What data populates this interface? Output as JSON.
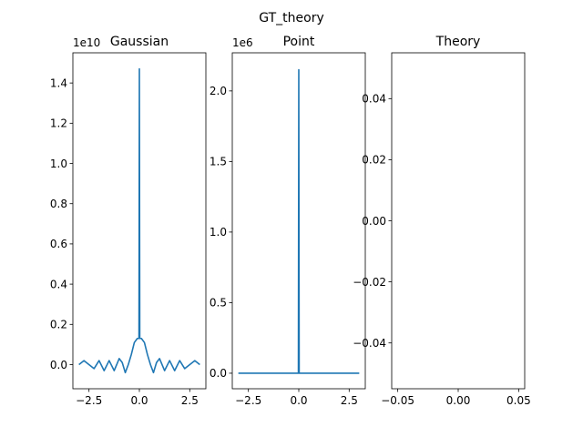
{
  "figure": {
    "suptitle": "GT_theory"
  },
  "chart_data": [
    {
      "type": "line",
      "title": "Gaussian",
      "xlabel": "",
      "ylabel": "",
      "offset_text": "1e10",
      "xlim": [
        -3.3,
        3.3
      ],
      "ylim": [
        -0.12,
        1.55
      ],
      "xticks": [
        -2.5,
        0.0,
        2.5
      ],
      "xtick_labels": [
        "−2.5",
        "0.0",
        "2.5"
      ],
      "yticks": [
        0.0,
        0.2,
        0.4,
        0.6,
        0.8,
        1.0,
        1.2,
        1.4
      ],
      "ytick_labels": [
        "0.0",
        "0.2",
        "0.4",
        "0.6",
        "0.8",
        "1.0",
        "1.2",
        "1.4"
      ],
      "grid": false,
      "color": "#1f77b4",
      "series": [
        {
          "x": [
            -3.0,
            -2.75,
            -2.5,
            -2.25,
            -2.0,
            -1.75,
            -1.5,
            -1.25,
            -1.0,
            -0.85,
            -0.7,
            -0.55,
            -0.4,
            -0.25,
            -0.1,
            -0.02,
            0.0,
            0.02,
            0.1,
            0.25,
            0.4,
            0.55,
            0.7,
            0.85,
            1.0,
            1.25,
            1.5,
            1.75,
            2.0,
            2.25,
            2.5,
            2.75,
            3.0
          ],
          "y": [
            0.0,
            0.02,
            0.0,
            -0.02,
            0.02,
            -0.03,
            0.02,
            -0.03,
            0.03,
            0.01,
            -0.04,
            0.0,
            0.05,
            0.11,
            0.13,
            0.13,
            1.47,
            0.13,
            0.13,
            0.11,
            0.05,
            0.0,
            -0.04,
            0.01,
            0.03,
            -0.03,
            0.02,
            -0.03,
            0.02,
            -0.02,
            0.0,
            0.02,
            0.0
          ]
        }
      ]
    },
    {
      "type": "line",
      "title": "Point",
      "xlabel": "",
      "ylabel": "",
      "offset_text": "1e6",
      "xlim": [
        -3.3,
        3.3
      ],
      "ylim": [
        -0.11,
        2.27
      ],
      "xticks": [
        -2.5,
        0.0,
        2.5
      ],
      "xtick_labels": [
        "−2.5",
        "0.0",
        "2.5"
      ],
      "yticks": [
        0.0,
        0.5,
        1.0,
        1.5,
        2.0
      ],
      "ytick_labels": [
        "0.0",
        "0.5",
        "1.0",
        "1.5",
        "2.0"
      ],
      "grid": false,
      "color": "#1f77b4",
      "series": [
        {
          "x": [
            -3.0,
            -0.02,
            0.0,
            0.02,
            3.0
          ],
          "y": [
            0.0,
            0.0,
            2.15,
            0.0,
            0.0
          ]
        }
      ]
    },
    {
      "type": "line",
      "title": "Theory",
      "xlabel": "",
      "ylabel": "",
      "offset_text": "",
      "xlim": [
        -0.055,
        0.055
      ],
      "ylim": [
        -0.055,
        0.055
      ],
      "xticks": [
        -0.05,
        0.0,
        0.05
      ],
      "xtick_labels": [
        "−0.05",
        "0.00",
        "0.05"
      ],
      "yticks": [
        -0.04,
        -0.02,
        0.0,
        0.02,
        0.04
      ],
      "ytick_labels": [
        "−0.04",
        "−0.02",
        "0.00",
        "0.02",
        "0.04"
      ],
      "grid": false,
      "color": "#1f77b4",
      "series": []
    }
  ]
}
